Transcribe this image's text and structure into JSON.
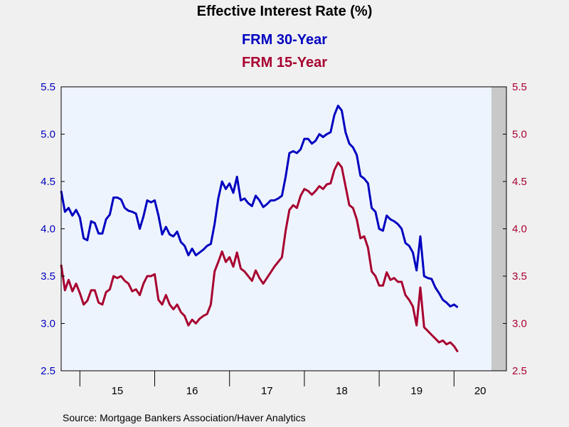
{
  "chart_data": {
    "type": "line",
    "title": "Effective Interest Rate (%)",
    "source": "Source:  Mortgage Bankers Association/Haver Analytics",
    "x_tick_labels": [
      "15",
      "16",
      "17",
      "18",
      "19",
      "20"
    ],
    "y_tick_labels": [
      "5.5",
      "5.0",
      "4.5",
      "4.0",
      "3.5",
      "3.0",
      "2.5"
    ],
    "ylim": [
      2.5,
      5.5
    ],
    "y_ticks": [
      2.5,
      3.0,
      3.5,
      4.0,
      4.5,
      5.0,
      5.5
    ],
    "xlim": [
      2014.25,
      2020.2
    ],
    "grid": false,
    "dual_y_axis": true,
    "shaded_region": {
      "x_start": 2020.0,
      "x_end": 2020.2,
      "color": "#c8c8c8"
    },
    "plot_background": "#eef4fd",
    "series": [
      {
        "name": "FRM 30-Year",
        "color": "#0000c0",
        "points": [
          [
            2014.25,
            4.4
          ],
          [
            2014.3,
            4.18
          ],
          [
            2014.35,
            4.22
          ],
          [
            2014.4,
            4.14
          ],
          [
            2014.45,
            4.2
          ],
          [
            2014.5,
            4.12
          ],
          [
            2014.55,
            3.9
          ],
          [
            2014.6,
            3.88
          ],
          [
            2014.65,
            4.08
          ],
          [
            2014.7,
            4.06
          ],
          [
            2014.75,
            3.95
          ],
          [
            2014.8,
            3.95
          ],
          [
            2014.85,
            4.1
          ],
          [
            2014.9,
            4.15
          ],
          [
            2014.95,
            4.33
          ],
          [
            2015.0,
            4.33
          ],
          [
            2015.05,
            4.31
          ],
          [
            2015.1,
            4.22
          ],
          [
            2015.15,
            4.19
          ],
          [
            2015.2,
            4.18
          ],
          [
            2015.25,
            4.16
          ],
          [
            2015.3,
            4.0
          ],
          [
            2015.35,
            4.13
          ],
          [
            2015.4,
            4.3
          ],
          [
            2015.45,
            4.28
          ],
          [
            2015.5,
            4.3
          ],
          [
            2015.55,
            4.14
          ],
          [
            2015.6,
            3.94
          ],
          [
            2015.65,
            4.02
          ],
          [
            2015.7,
            3.94
          ],
          [
            2015.75,
            3.92
          ],
          [
            2015.8,
            3.97
          ],
          [
            2015.85,
            3.86
          ],
          [
            2015.9,
            3.82
          ],
          [
            2015.95,
            3.72
          ],
          [
            2016.0,
            3.79
          ],
          [
            2016.05,
            3.72
          ],
          [
            2016.1,
            3.75
          ],
          [
            2016.15,
            3.78
          ],
          [
            2016.2,
            3.82
          ],
          [
            2016.25,
            3.84
          ],
          [
            2016.3,
            4.05
          ],
          [
            2016.35,
            4.32
          ],
          [
            2016.4,
            4.5
          ],
          [
            2016.45,
            4.42
          ],
          [
            2016.5,
            4.48
          ],
          [
            2016.55,
            4.38
          ],
          [
            2016.6,
            4.55
          ],
          [
            2016.65,
            4.3
          ],
          [
            2016.7,
            4.32
          ],
          [
            2016.75,
            4.27
          ],
          [
            2016.8,
            4.24
          ],
          [
            2016.85,
            4.35
          ],
          [
            2016.9,
            4.3
          ],
          [
            2016.95,
            4.23
          ],
          [
            2017.0,
            4.26
          ],
          [
            2017.05,
            4.3
          ],
          [
            2017.1,
            4.3
          ],
          [
            2017.15,
            4.32
          ],
          [
            2017.2,
            4.35
          ],
          [
            2017.25,
            4.55
          ],
          [
            2017.3,
            4.8
          ],
          [
            2017.35,
            4.82
          ],
          [
            2017.4,
            4.8
          ],
          [
            2017.45,
            4.84
          ],
          [
            2017.5,
            4.95
          ],
          [
            2017.55,
            4.95
          ],
          [
            2017.6,
            4.9
          ],
          [
            2017.65,
            4.93
          ],
          [
            2017.7,
            5.0
          ],
          [
            2017.75,
            4.97
          ],
          [
            2017.8,
            5.0
          ],
          [
            2017.85,
            5.02
          ],
          [
            2017.9,
            5.2
          ],
          [
            2017.95,
            5.3
          ],
          [
            2018.0,
            5.25
          ],
          [
            2018.05,
            5.02
          ],
          [
            2018.1,
            4.9
          ],
          [
            2018.15,
            4.86
          ],
          [
            2018.2,
            4.78
          ],
          [
            2018.25,
            4.56
          ],
          [
            2018.3,
            4.53
          ],
          [
            2018.35,
            4.48
          ],
          [
            2018.4,
            4.22
          ],
          [
            2018.45,
            4.18
          ],
          [
            2018.5,
            4.0
          ],
          [
            2018.55,
            3.98
          ],
          [
            2018.6,
            4.14
          ],
          [
            2018.65,
            4.1
          ],
          [
            2018.7,
            4.08
          ],
          [
            2018.75,
            4.05
          ],
          [
            2018.8,
            4.0
          ],
          [
            2018.85,
            3.85
          ],
          [
            2018.9,
            3.82
          ],
          [
            2018.95,
            3.75
          ],
          [
            2019.0,
            3.56
          ],
          [
            2019.05,
            3.92
          ],
          [
            2019.1,
            3.5
          ],
          [
            2019.15,
            3.48
          ],
          [
            2019.2,
            3.47
          ],
          [
            2019.25,
            3.38
          ],
          [
            2019.3,
            3.32
          ],
          [
            2019.35,
            3.25
          ],
          [
            2019.4,
            3.22
          ],
          [
            2019.45,
            3.18
          ],
          [
            2019.5,
            3.2
          ],
          [
            2019.55,
            3.17
          ]
        ]
      },
      {
        "name": "FRM 15-Year",
        "color": "#a80030",
        "points": [
          [
            2014.25,
            3.62
          ],
          [
            2014.3,
            3.35
          ],
          [
            2014.35,
            3.46
          ],
          [
            2014.4,
            3.34
          ],
          [
            2014.45,
            3.42
          ],
          [
            2014.5,
            3.32
          ],
          [
            2014.55,
            3.2
          ],
          [
            2014.6,
            3.24
          ],
          [
            2014.65,
            3.35
          ],
          [
            2014.7,
            3.35
          ],
          [
            2014.75,
            3.22
          ],
          [
            2014.8,
            3.2
          ],
          [
            2014.85,
            3.33
          ],
          [
            2014.9,
            3.36
          ],
          [
            2014.95,
            3.5
          ],
          [
            2015.0,
            3.48
          ],
          [
            2015.05,
            3.5
          ],
          [
            2015.1,
            3.45
          ],
          [
            2015.15,
            3.42
          ],
          [
            2015.2,
            3.34
          ],
          [
            2015.25,
            3.36
          ],
          [
            2015.3,
            3.3
          ],
          [
            2015.35,
            3.42
          ],
          [
            2015.4,
            3.5
          ],
          [
            2015.45,
            3.5
          ],
          [
            2015.5,
            3.52
          ],
          [
            2015.55,
            3.25
          ],
          [
            2015.6,
            3.2
          ],
          [
            2015.65,
            3.3
          ],
          [
            2015.7,
            3.2
          ],
          [
            2015.75,
            3.15
          ],
          [
            2015.8,
            3.2
          ],
          [
            2015.85,
            3.12
          ],
          [
            2015.9,
            3.08
          ],
          [
            2015.95,
            2.98
          ],
          [
            2016.0,
            3.04
          ],
          [
            2016.05,
            3.0
          ],
          [
            2016.1,
            3.05
          ],
          [
            2016.15,
            3.08
          ],
          [
            2016.2,
            3.1
          ],
          [
            2016.25,
            3.2
          ],
          [
            2016.3,
            3.55
          ],
          [
            2016.35,
            3.65
          ],
          [
            2016.4,
            3.76
          ],
          [
            2016.45,
            3.65
          ],
          [
            2016.5,
            3.7
          ],
          [
            2016.55,
            3.6
          ],
          [
            2016.6,
            3.75
          ],
          [
            2016.65,
            3.58
          ],
          [
            2016.7,
            3.55
          ],
          [
            2016.75,
            3.5
          ],
          [
            2016.8,
            3.45
          ],
          [
            2016.85,
            3.56
          ],
          [
            2016.9,
            3.48
          ],
          [
            2016.95,
            3.42
          ],
          [
            2017.0,
            3.48
          ],
          [
            2017.05,
            3.54
          ],
          [
            2017.1,
            3.6
          ],
          [
            2017.15,
            3.65
          ],
          [
            2017.2,
            3.7
          ],
          [
            2017.25,
            3.98
          ],
          [
            2017.3,
            4.2
          ],
          [
            2017.35,
            4.25
          ],
          [
            2017.4,
            4.22
          ],
          [
            2017.45,
            4.35
          ],
          [
            2017.5,
            4.42
          ],
          [
            2017.55,
            4.4
          ],
          [
            2017.6,
            4.36
          ],
          [
            2017.65,
            4.4
          ],
          [
            2017.7,
            4.45
          ],
          [
            2017.75,
            4.42
          ],
          [
            2017.8,
            4.47
          ],
          [
            2017.85,
            4.48
          ],
          [
            2017.9,
            4.62
          ],
          [
            2017.95,
            4.7
          ],
          [
            2018.0,
            4.65
          ],
          [
            2018.05,
            4.45
          ],
          [
            2018.1,
            4.25
          ],
          [
            2018.15,
            4.22
          ],
          [
            2018.2,
            4.1
          ],
          [
            2018.25,
            3.9
          ],
          [
            2018.3,
            3.92
          ],
          [
            2018.35,
            3.8
          ],
          [
            2018.4,
            3.55
          ],
          [
            2018.45,
            3.5
          ],
          [
            2018.5,
            3.4
          ],
          [
            2018.55,
            3.4
          ],
          [
            2018.6,
            3.54
          ],
          [
            2018.65,
            3.46
          ],
          [
            2018.7,
            3.48
          ],
          [
            2018.75,
            3.44
          ],
          [
            2018.8,
            3.44
          ],
          [
            2018.85,
            3.3
          ],
          [
            2018.9,
            3.25
          ],
          [
            2018.95,
            3.18
          ],
          [
            2019.0,
            2.98
          ],
          [
            2019.05,
            3.38
          ],
          [
            2019.1,
            2.96
          ],
          [
            2019.15,
            2.92
          ],
          [
            2019.2,
            2.88
          ],
          [
            2019.25,
            2.84
          ],
          [
            2019.3,
            2.8
          ],
          [
            2019.35,
            2.82
          ],
          [
            2019.4,
            2.78
          ],
          [
            2019.45,
            2.8
          ],
          [
            2019.5,
            2.76
          ],
          [
            2019.55,
            2.7
          ]
        ]
      }
    ]
  }
}
